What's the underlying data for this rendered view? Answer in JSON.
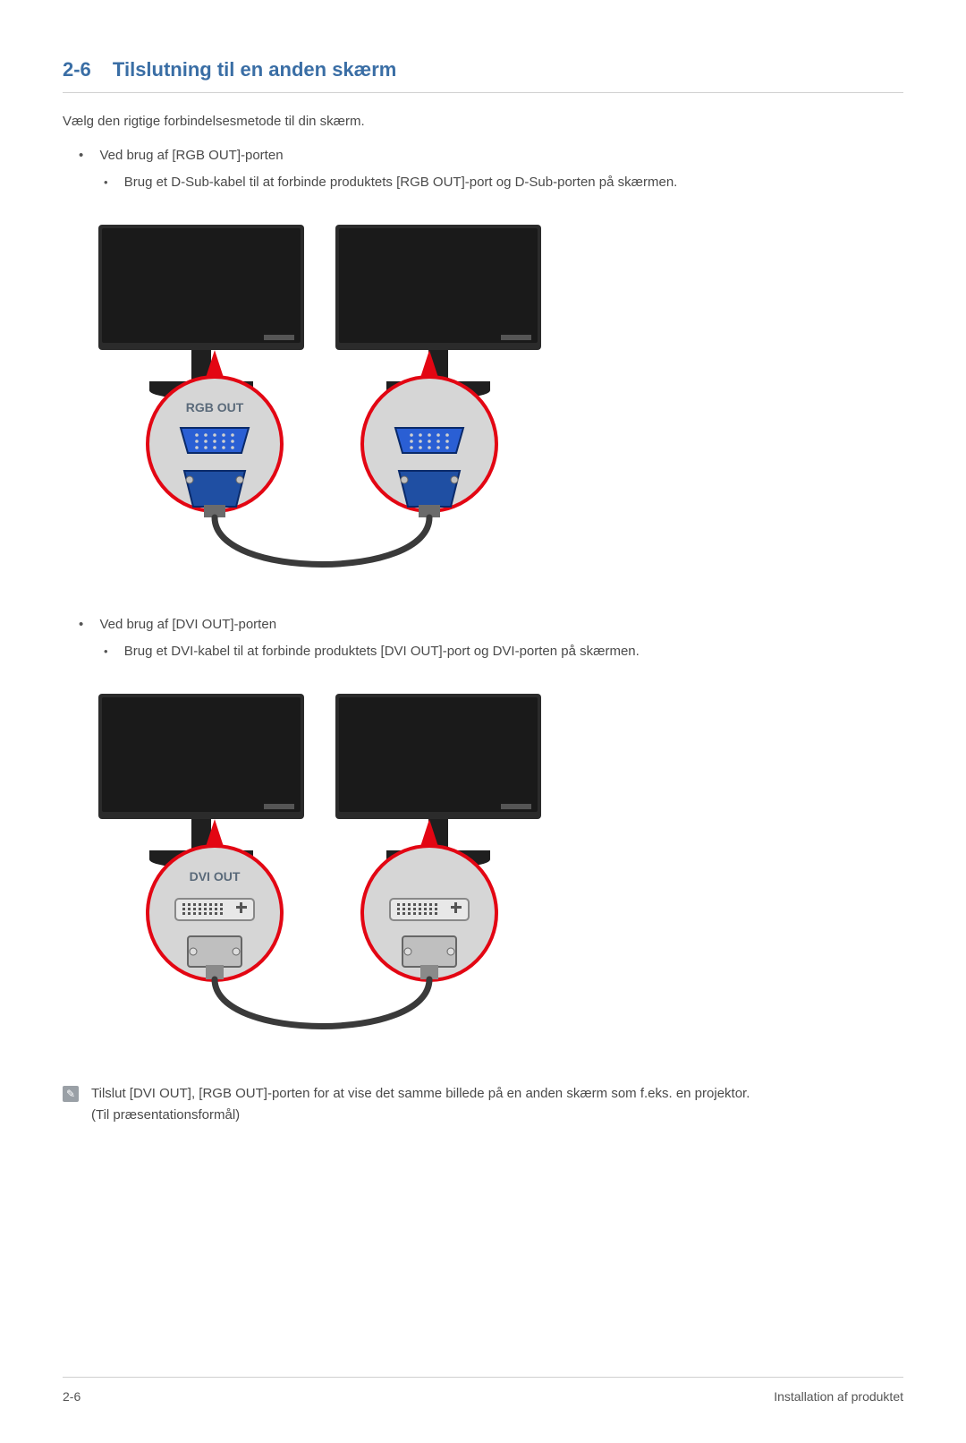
{
  "heading": {
    "number": "2-6",
    "title": "Tilslutning til en anden skærm",
    "color": "#3a6ea5",
    "fontsize": 22
  },
  "intro": "Vælg den rigtige forbindelsesmetode til din skærm.",
  "sections": [
    {
      "bullet": "Ved brug af [RGB OUT]-porten",
      "sub": "Brug et D-Sub-kabel til at forbinde produktets [RGB OUT]-port og D-Sub-porten på skærmen.",
      "diagram": {
        "port_label": "RGB OUT",
        "port_type": "vga",
        "monitor_color": "#2b2b2b",
        "callout_fill": "#d6d6d6",
        "callout_stroke": "#e30613",
        "connector_color": "#1f4fa3",
        "connector_shell": "#6b6b6b",
        "cable_color": "#3a3a3a",
        "port_face_color": "#2a5fd4",
        "port_pin_color": "#d0d0d0"
      }
    },
    {
      "bullet": "Ved brug af [DVI OUT]-porten",
      "sub": "Brug et DVI-kabel til at forbinde produktets [DVI OUT]-port og DVI-porten på skærmen.",
      "diagram": {
        "port_label": "DVI OUT",
        "port_type": "dvi",
        "monitor_color": "#2b2b2b",
        "callout_fill": "#d6d6d6",
        "callout_stroke": "#e30613",
        "connector_color": "#bfbfbf",
        "connector_shell": "#8a8a8a",
        "cable_color": "#3a3a3a",
        "port_face_color": "#e8e8e8",
        "port_pin_color": "#555"
      }
    }
  ],
  "note": {
    "line1": "Tilslut [DVI OUT], [RGB OUT]-porten for at vise det samme billede på en anden skærm som f.eks. en projektor.",
    "line2": "(Til præsentationsformål)"
  },
  "footer": {
    "left": "2-6",
    "right": "Installation af produktet"
  },
  "colors": {
    "text": "#4a4a4a",
    "rule": "#d0d0d0",
    "bg": "#ffffff"
  }
}
